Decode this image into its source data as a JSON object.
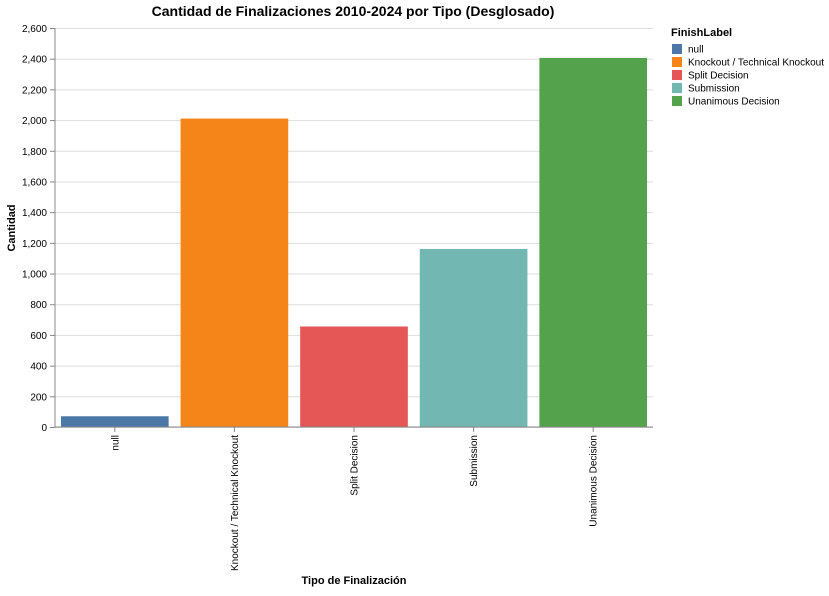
{
  "chart_data": {
    "type": "bar",
    "title": "Cantidad de Finalizaciones 2010-2024 por Tipo (Desglosado)",
    "xlabel": "Tipo de Finalización",
    "ylabel": "Cantidad",
    "categories": [
      "null",
      "Knockout / Technical Knockout",
      "Split Decision",
      "Submission",
      "Unanimous Decision"
    ],
    "values": [
      70,
      2010,
      655,
      1160,
      2405
    ],
    "colors": [
      "#4c78a8",
      "#f58518",
      "#e45756",
      "#72b7b2",
      "#54a24b"
    ],
    "ylim": [
      0,
      2600
    ],
    "yticks": [
      0,
      200,
      400,
      600,
      800,
      1000,
      1200,
      1400,
      1600,
      1800,
      2000,
      2200,
      2400,
      2600
    ],
    "ytick_labels": [
      "0",
      "200",
      "400",
      "600",
      "800",
      "1,000",
      "1,200",
      "1,400",
      "1,600",
      "1,800",
      "2,000",
      "2,200",
      "2,400",
      "2,600"
    ],
    "grid": true,
    "legend": {
      "title": "FinishLabel",
      "position": "right",
      "entries": [
        "null",
        "Knockout / Technical Knockout",
        "Split Decision",
        "Submission",
        "Unanimous Decision"
      ]
    }
  }
}
